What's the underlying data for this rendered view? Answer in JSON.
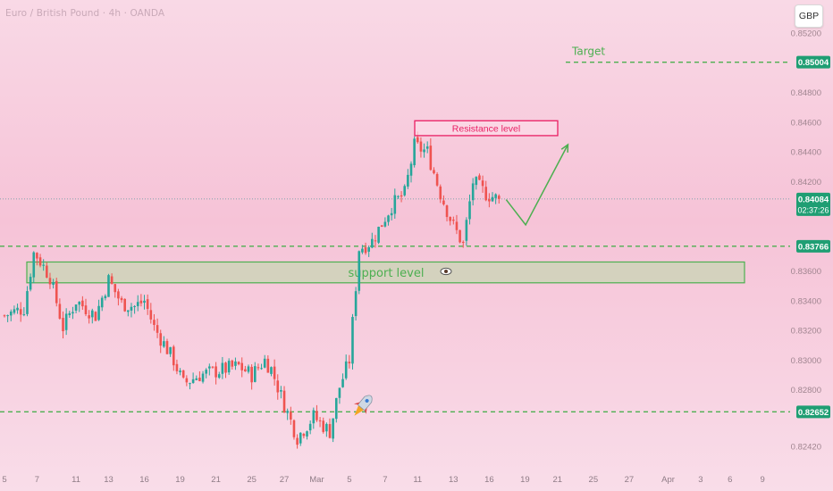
{
  "header": {
    "symbol_title": "Euro / British Pound · 4h · OANDA",
    "currency_button": "GBP"
  },
  "colors": {
    "bull": "#26a69a",
    "bear": "#ef5350",
    "annotation_green": "#4caf50",
    "resistance": "#e91e63",
    "price_badge": "#1f9e73"
  },
  "annotations": {
    "target_label": "Target",
    "resistance_label": "Resistance level",
    "support_label": "support level",
    "eye_icon": "eye-icon",
    "rocket_icon": "rocket-icon"
  },
  "chart_data": {
    "type": "candlestick",
    "title": "",
    "xlabel": "",
    "ylabel": "",
    "ylim": [
      0.8236,
      0.8528
    ],
    "grid": false,
    "y_ticks": [
      "0.85200",
      "0.84800",
      "0.84600",
      "0.84400",
      "0.84200",
      "0.83600",
      "0.83400",
      "0.83200",
      "0.83000",
      "0.82800",
      "0.82420"
    ],
    "y_tick_values": [
      0.852,
      0.848,
      0.846,
      0.844,
      0.842,
      0.836,
      0.834,
      0.832,
      0.83,
      0.828,
      0.8242
    ],
    "x_ticks": [
      "5",
      "7",
      "11",
      "13",
      "16",
      "19",
      "21",
      "25",
      "27",
      "Mar",
      "5",
      "7",
      "11",
      "13",
      "16",
      "19",
      "21",
      "25",
      "27",
      "Apr",
      "3",
      "6",
      "9"
    ],
    "x_tick_index": [
      0,
      10,
      22,
      32,
      43,
      54,
      65,
      76,
      86,
      96,
      106,
      117,
      127,
      138,
      149,
      160,
      170,
      181,
      192,
      204,
      214,
      223,
      233
    ],
    "levels": {
      "target": 0.85004,
      "last_price": 0.84084,
      "countdown": "02:37:26",
      "upper_support": 0.83766,
      "lower_support": 0.82652,
      "support_zone": [
        0.8352,
        0.8366
      ],
      "resistance_zone": [
        0.8451,
        0.8461
      ]
    },
    "last_candle_index": 152,
    "projection": [
      {
        "index": 152,
        "price": 0.8408
      },
      {
        "index": 158,
        "price": 0.8391
      },
      {
        "index": 171,
        "price": 0.8445
      }
    ],
    "waypoints": [
      [
        0,
        0.833
      ],
      [
        6,
        0.8335
      ],
      [
        9,
        0.8372
      ],
      [
        10,
        0.837
      ],
      [
        14,
        0.8356
      ],
      [
        18,
        0.8322
      ],
      [
        22,
        0.834
      ],
      [
        28,
        0.833
      ],
      [
        32,
        0.8354
      ],
      [
        36,
        0.8338
      ],
      [
        40,
        0.8336
      ],
      [
        43,
        0.834
      ],
      [
        46,
        0.8322
      ],
      [
        52,
        0.83
      ],
      [
        55,
        0.8284
      ],
      [
        60,
        0.829
      ],
      [
        66,
        0.8293
      ],
      [
        72,
        0.8296
      ],
      [
        76,
        0.829
      ],
      [
        80,
        0.83
      ],
      [
        82,
        0.8294
      ],
      [
        86,
        0.827
      ],
      [
        90,
        0.8248
      ],
      [
        95,
        0.8262
      ],
      [
        100,
        0.8252
      ],
      [
        103,
        0.8282
      ],
      [
        106,
        0.83
      ],
      [
        109,
        0.8375
      ],
      [
        113,
        0.838
      ],
      [
        116,
        0.8392
      ],
      [
        119,
        0.8404
      ],
      [
        123,
        0.8412
      ],
      [
        126,
        0.8444
      ],
      [
        130,
        0.844
      ],
      [
        134,
        0.8412
      ],
      [
        138,
        0.839
      ],
      [
        141,
        0.8378
      ],
      [
        144,
        0.842
      ],
      [
        148,
        0.8412
      ],
      [
        152,
        0.8408
      ]
    ],
    "series": [
      {
        "name": "",
        "type": "candlestick",
        "count": 153
      }
    ]
  }
}
